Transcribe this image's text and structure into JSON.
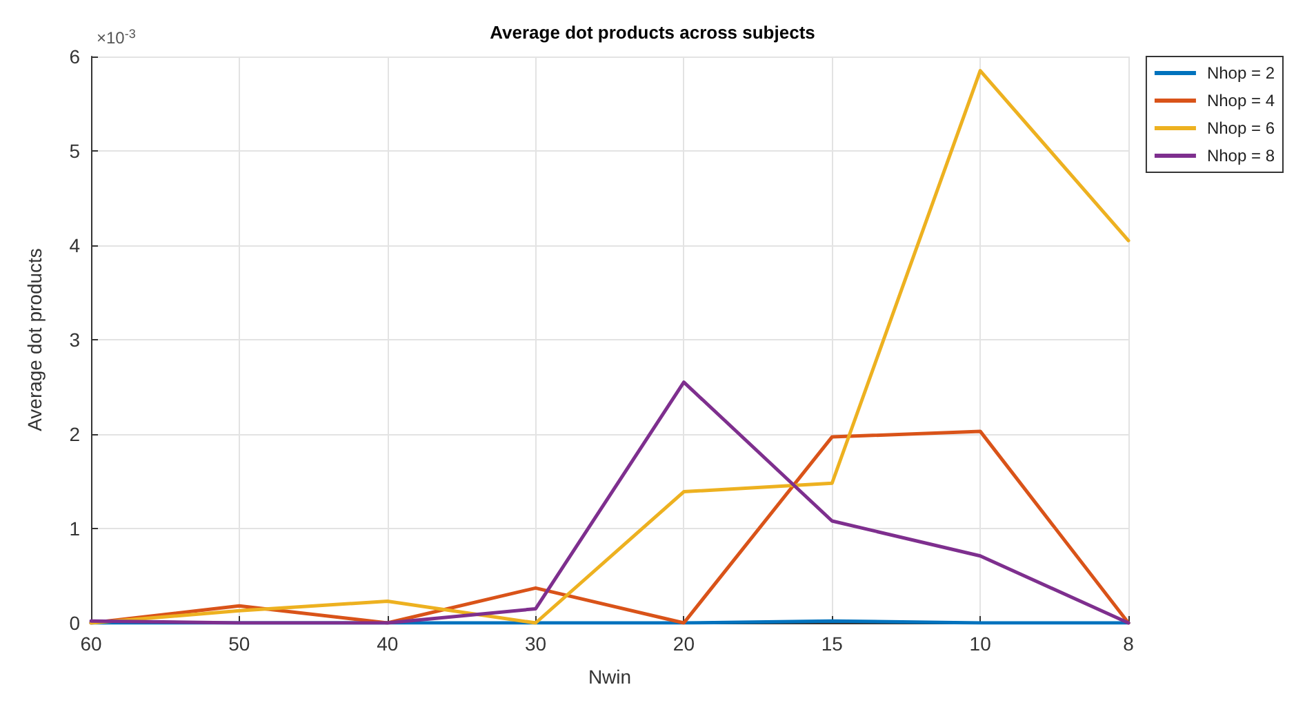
{
  "chart_data": {
    "type": "line",
    "title": "Average dot products across subjects",
    "xlabel": "Nwin",
    "ylabel": "Average dot products",
    "annotations": [
      "×10$^{-3}$"
    ],
    "categories": [
      "60",
      "50",
      "40",
      "30",
      "20",
      "15",
      "10",
      "8"
    ],
    "series": [
      {
        "name": "Nhop = 2",
        "color": "#0072bd",
        "values": [
          0,
          0,
          0,
          0,
          0,
          0.02,
          0,
          0
        ]
      },
      {
        "name": "Nhop = 4",
        "color": "#d95319",
        "values": [
          0,
          0.18,
          0,
          0.37,
          0,
          1.97,
          2.03,
          0
        ]
      },
      {
        "name": "Nhop = 6",
        "color": "#edb120",
        "values": [
          0,
          0.13,
          0.23,
          0,
          1.39,
          1.48,
          5.85,
          4.05
        ]
      },
      {
        "name": "Nhop = 8",
        "color": "#7e2f8e",
        "values": [
          0.02,
          0,
          0,
          0.15,
          2.55,
          1.08,
          0.71,
          0
        ]
      }
    ],
    "ylim": [
      0,
      6
    ],
    "yticks": [
      0,
      1,
      2,
      3,
      4,
      5,
      6
    ],
    "grid": true,
    "legend": "top right",
    "marker": "none",
    "line_style": "solid"
  }
}
